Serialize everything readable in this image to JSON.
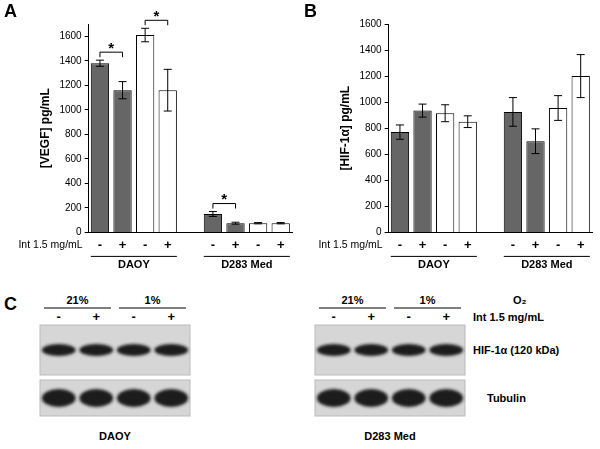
{
  "chart_data": [
    {
      "type": "bar",
      "title": "A",
      "y_label": "[VEGF] pg/mL",
      "categories": [
        "-",
        "+",
        "-",
        "+",
        null,
        "-",
        "+",
        "-",
        "+"
      ],
      "values": [
        1380,
        1160,
        1610,
        1160,
        null,
        150,
        75,
        75,
        75
      ],
      "errors": [
        25,
        70,
        55,
        170,
        null,
        20,
        8,
        5,
        5
      ],
      "colors": [
        "#666666",
        "#666666",
        "#ffffff",
        "#ffffff",
        null,
        "#666666",
        "#666666",
        "#ffffff",
        "#ffffff"
      ],
      "ylim": [
        0,
        1700
      ],
      "yticks": [
        0,
        200,
        400,
        600,
        800,
        1000,
        1200,
        1400,
        1600
      ],
      "grid": false,
      "row_label": "Int 1.5 mg/mL",
      "groups": [
        {
          "label": "DAOY",
          "bars": [
            0,
            3
          ]
        },
        {
          "label": "D283 Med",
          "bars": [
            5,
            8
          ]
        }
      ],
      "significance": [
        {
          "bars": [
            0,
            1
          ],
          "label": "*"
        },
        {
          "bars": [
            2,
            3
          ],
          "label": "*"
        },
        {
          "bars": [
            5,
            6
          ],
          "label": "*"
        }
      ]
    },
    {
      "type": "bar",
      "title": "B",
      "y_label": "[HIF-1α] pg/mL",
      "categories": [
        "-",
        "+",
        "-",
        "+",
        null,
        "-",
        "+",
        "-",
        "+"
      ],
      "values": [
        770,
        935,
        915,
        850,
        null,
        925,
        700,
        955,
        1200
      ],
      "errors": [
        55,
        50,
        65,
        45,
        null,
        110,
        95,
        95,
        165
      ],
      "colors": [
        "#666666",
        "#666666",
        "#ffffff",
        "#ffffff",
        null,
        "#666666",
        "#666666",
        "#ffffff",
        "#ffffff"
      ],
      "ylim": [
        0,
        1600
      ],
      "yticks": [
        0,
        200,
        400,
        600,
        800,
        1000,
        1200,
        1400,
        1600
      ],
      "grid": false,
      "row_label": "Int 1.5 mg/mL",
      "groups": [
        {
          "label": "DAOY",
          "bars": [
            0,
            3
          ]
        },
        {
          "label": "D283 Med",
          "bars": [
            5,
            8
          ]
        }
      ]
    }
  ],
  "western_blot": {
    "title": "C",
    "o2_label": "O₂",
    "treatment_label": "Int 1.5 mg/mL",
    "conditions": [
      {
        "label": "21%",
        "lanes": [
          "-",
          "+"
        ]
      },
      {
        "label": "1%",
        "lanes": [
          "-",
          "+"
        ]
      }
    ],
    "bands": [
      "HIF-1α  (120 kDa)",
      "Tubulin"
    ],
    "blots": [
      "DAOY",
      "D283 Med"
    ]
  }
}
